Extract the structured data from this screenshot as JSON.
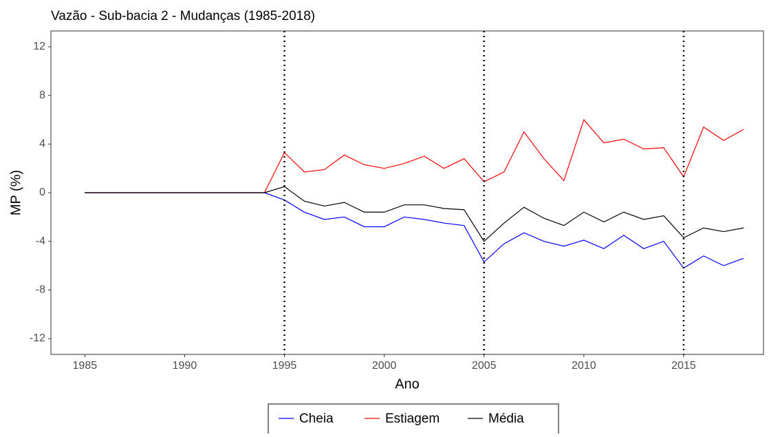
{
  "chart_data": {
    "type": "line",
    "title": "Vazão - Sub-bacia 2 - Mudanças (1985-2018)",
    "x_label": "Ano",
    "y_label": "MP (%)",
    "x": [
      1985,
      1986,
      1987,
      1988,
      1989,
      1990,
      1991,
      1992,
      1993,
      1994,
      1995,
      1996,
      1997,
      1998,
      1999,
      2000,
      2001,
      2002,
      2003,
      2004,
      2005,
      2006,
      2007,
      2008,
      2009,
      2010,
      2011,
      2012,
      2013,
      2014,
      2015,
      2016,
      2017,
      2018
    ],
    "series": [
      {
        "name": "Cheia",
        "color": "#0000ff",
        "values": [
          0,
          0,
          0,
          0,
          0,
          0,
          0,
          0,
          0,
          0,
          -0.6,
          -1.6,
          -2.2,
          -2.0,
          -2.8,
          -2.8,
          -2.0,
          -2.2,
          -2.5,
          -2.7,
          -5.7,
          -4.2,
          -3.3,
          -4.0,
          -4.4,
          -3.9,
          -4.6,
          -3.5,
          -4.6,
          -4.0,
          -6.2,
          -5.2,
          -6.0,
          -5.4
        ]
      },
      {
        "name": "Estiagem",
        "color": "#ff0000",
        "values": [
          0,
          0,
          0,
          0,
          0,
          0,
          0,
          0,
          0,
          0,
          3.3,
          1.7,
          1.9,
          3.1,
          2.3,
          2.0,
          2.4,
          3.0,
          2.0,
          2.8,
          0.9,
          1.7,
          5.0,
          2.8,
          1.0,
          6.0,
          4.1,
          4.4,
          3.6,
          3.7,
          1.3,
          5.4,
          4.3,
          5.2
        ]
      },
      {
        "name": "Média",
        "color": "#000000",
        "values": [
          0,
          0,
          0,
          0,
          0,
          0,
          0,
          0,
          0,
          0,
          0.5,
          -0.7,
          -1.1,
          -0.8,
          -1.6,
          -1.6,
          -1.0,
          -1.0,
          -1.3,
          -1.4,
          -4.0,
          -2.5,
          -1.2,
          -2.1,
          -2.7,
          -1.6,
          -2.4,
          -1.6,
          -2.2,
          -1.9,
          -3.7,
          -2.9,
          -3.2,
          -2.9
        ]
      }
    ],
    "vlines": [
      1995,
      2005,
      2015
    ],
    "xlim": [
      1983.3,
      2019.0
    ],
    "xticks": [
      1985,
      1990,
      1995,
      2000,
      2005,
      2010,
      2015
    ],
    "ylim": [
      -13.3,
      13.3
    ],
    "yticks": [
      -12,
      -8,
      -4,
      0,
      4,
      8,
      12
    ],
    "grid": false,
    "legend": "bottom"
  }
}
